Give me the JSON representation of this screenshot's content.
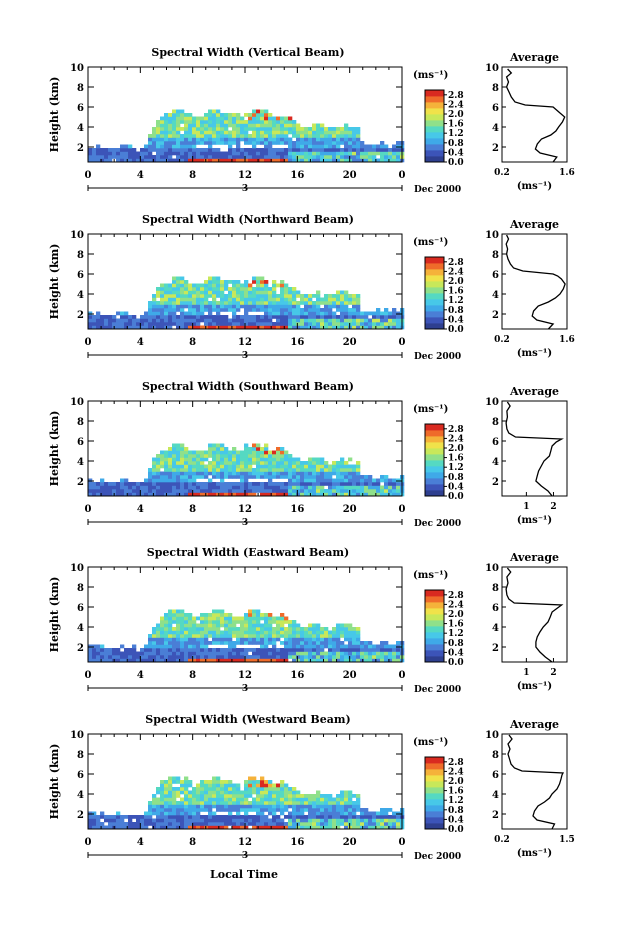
{
  "figure": {
    "xlabel": "Local Time"
  },
  "colorbar": {
    "unit_label": "(ms⁻¹)",
    "ticks": [
      "0.0",
      "0.4",
      "0.8",
      "1.2",
      "1.6",
      "2.0",
      "2.4",
      "2.8"
    ],
    "colors": [
      "#2e3f8f",
      "#3c54b8",
      "#4a7ed6",
      "#3fa9e8",
      "#47c8e8",
      "#55d9c2",
      "#8fe08a",
      "#c8e85a",
      "#f0e24a",
      "#f5b23a",
      "#ef6b2a",
      "#d92a20"
    ]
  },
  "chart_data": [
    {
      "type": "heatmap",
      "title": "Spectral Width (Vertical Beam)",
      "ylabel": "Height (km)",
      "x_ticks": [
        "0",
        "4",
        "8",
        "12",
        "16",
        "20",
        "0"
      ],
      "y_ticks": [
        "2",
        "4",
        "6",
        "8",
        "10"
      ],
      "xlim": [
        0,
        24
      ],
      "ylim": [
        0.5,
        10
      ],
      "date_marker": "3",
      "date_label": "Dec 2000",
      "avg": {
        "title": "Average",
        "xlabel": "(ms⁻¹)",
        "x_ticks": [
          "0.2",
          "1.6"
        ],
        "y_ticks": [
          "2",
          "4",
          "6",
          "8",
          "10"
        ],
        "xlim": [
          0.2,
          1.6
        ],
        "profile": [
          [
            0.5,
            1.3
          ],
          [
            1.0,
            1.38
          ],
          [
            1.4,
            1.02
          ],
          [
            1.8,
            0.92
          ],
          [
            2.3,
            0.96
          ],
          [
            2.8,
            1.05
          ],
          [
            3.2,
            1.25
          ],
          [
            3.6,
            1.36
          ],
          [
            4.0,
            1.42
          ],
          [
            4.5,
            1.5
          ],
          [
            5.0,
            1.55
          ],
          [
            5.4,
            1.45
          ],
          [
            5.8,
            1.35
          ],
          [
            6.0,
            1.3
          ],
          [
            6.2,
            0.7
          ],
          [
            6.5,
            0.48
          ],
          [
            7.0,
            0.4
          ],
          [
            7.5,
            0.35
          ],
          [
            8.0,
            0.3
          ],
          [
            8.5,
            0.34
          ],
          [
            9.0,
            0.3
          ],
          [
            9.4,
            0.4
          ],
          [
            9.8,
            0.32
          ]
        ]
      }
    },
    {
      "type": "heatmap",
      "title": "Spectral Width (Northward Beam)",
      "ylabel": "Height (km)",
      "x_ticks": [
        "0",
        "4",
        "8",
        "12",
        "16",
        "20",
        "0"
      ],
      "y_ticks": [
        "2",
        "4",
        "6",
        "8",
        "10"
      ],
      "xlim": [
        0,
        24
      ],
      "ylim": [
        0.5,
        10
      ],
      "date_marker": "3",
      "date_label": "Dec 2000",
      "avg": {
        "title": "Average",
        "xlabel": "(ms⁻¹)",
        "x_ticks": [
          "0.2",
          "1.6"
        ],
        "y_ticks": [
          "2",
          "4",
          "6",
          "8",
          "10"
        ],
        "xlim": [
          0.2,
          1.6
        ],
        "profile": [
          [
            0.5,
            1.2
          ],
          [
            1.0,
            1.3
          ],
          [
            1.4,
            0.95
          ],
          [
            1.8,
            0.85
          ],
          [
            2.3,
            0.88
          ],
          [
            2.8,
            0.98
          ],
          [
            3.2,
            1.2
          ],
          [
            3.6,
            1.35
          ],
          [
            4.0,
            1.45
          ],
          [
            4.5,
            1.52
          ],
          [
            5.0,
            1.56
          ],
          [
            5.5,
            1.48
          ],
          [
            5.8,
            1.4
          ],
          [
            6.0,
            1.3
          ],
          [
            6.3,
            0.65
          ],
          [
            6.6,
            0.45
          ],
          [
            7.0,
            0.38
          ],
          [
            7.5,
            0.33
          ],
          [
            8.0,
            0.3
          ],
          [
            8.5,
            0.32
          ],
          [
            9.0,
            0.29
          ],
          [
            9.5,
            0.34
          ],
          [
            9.9,
            0.3
          ]
        ]
      }
    },
    {
      "type": "heatmap",
      "title": "Spectral Width (Southward Beam)",
      "ylabel": "Height (km)",
      "x_ticks": [
        "0",
        "4",
        "8",
        "12",
        "16",
        "20",
        "0"
      ],
      "y_ticks": [
        "2",
        "4",
        "6",
        "8",
        "10"
      ],
      "xlim": [
        0,
        24
      ],
      "ylim": [
        0.5,
        10
      ],
      "date_marker": "3",
      "date_label": "Dec 2000",
      "avg": {
        "title": "Average",
        "xlabel": "(ms⁻¹)",
        "x_ticks": [
          "1",
          "2"
        ],
        "y_ticks": [
          "2",
          "4",
          "6",
          "8",
          "10"
        ],
        "xlim": [
          0.1,
          2.5
        ],
        "profile": [
          [
            0.5,
            1.95
          ],
          [
            1.0,
            1.8
          ],
          [
            1.5,
            1.55
          ],
          [
            2.0,
            1.35
          ],
          [
            2.5,
            1.4
          ],
          [
            3.0,
            1.45
          ],
          [
            3.5,
            1.55
          ],
          [
            4.0,
            1.65
          ],
          [
            4.5,
            1.85
          ],
          [
            5.0,
            1.9
          ],
          [
            5.5,
            1.95
          ],
          [
            5.9,
            2.1
          ],
          [
            6.2,
            2.3
          ],
          [
            6.4,
            0.6
          ],
          [
            6.8,
            0.35
          ],
          [
            7.2,
            0.28
          ],
          [
            7.8,
            0.25
          ],
          [
            8.4,
            0.3
          ],
          [
            9.0,
            0.28
          ],
          [
            9.5,
            0.4
          ],
          [
            9.9,
            0.3
          ]
        ]
      }
    },
    {
      "type": "heatmap",
      "title": "Spectral Width (Eastward Beam)",
      "ylabel": "Height (km)",
      "x_ticks": [
        "0",
        "4",
        "8",
        "12",
        "16",
        "20",
        "0"
      ],
      "y_ticks": [
        "2",
        "4",
        "6",
        "8",
        "10"
      ],
      "xlim": [
        0,
        24
      ],
      "ylim": [
        0.5,
        10
      ],
      "date_marker": "3",
      "date_label": "Dec 2000",
      "avg": {
        "title": "Average",
        "xlabel": "(ms⁻¹)",
        "x_ticks": [
          "1",
          "2"
        ],
        "y_ticks": [
          "2",
          "4",
          "6",
          "8",
          "10"
        ],
        "xlim": [
          0.1,
          2.5
        ],
        "profile": [
          [
            0.5,
            1.95
          ],
          [
            1.0,
            1.7
          ],
          [
            1.5,
            1.5
          ],
          [
            2.0,
            1.35
          ],
          [
            2.5,
            1.35
          ],
          [
            3.0,
            1.4
          ],
          [
            3.5,
            1.5
          ],
          [
            4.0,
            1.62
          ],
          [
            4.5,
            1.8
          ],
          [
            5.0,
            1.88
          ],
          [
            5.5,
            1.95
          ],
          [
            5.9,
            2.15
          ],
          [
            6.2,
            2.3
          ],
          [
            6.4,
            0.55
          ],
          [
            6.8,
            0.35
          ],
          [
            7.2,
            0.28
          ],
          [
            7.8,
            0.25
          ],
          [
            8.4,
            0.32
          ],
          [
            9.0,
            0.28
          ],
          [
            9.5,
            0.42
          ],
          [
            9.9,
            0.3
          ]
        ]
      }
    },
    {
      "type": "heatmap",
      "title": "Spectral Width (Westward Beam)",
      "ylabel": "Height (km)",
      "x_ticks": [
        "0",
        "4",
        "8",
        "12",
        "16",
        "20",
        "0"
      ],
      "y_ticks": [
        "2",
        "4",
        "6",
        "8",
        "10"
      ],
      "xlim": [
        0,
        24
      ],
      "ylim": [
        0.5,
        10
      ],
      "date_marker": "3",
      "date_label": "Dec 2000",
      "avg": {
        "title": "Average",
        "xlabel": "(ms⁻¹)",
        "x_ticks": [
          "0.2",
          "1.5"
        ],
        "y_ticks": [
          "2",
          "4",
          "6",
          "8",
          "10"
        ],
        "xlim": [
          0.2,
          1.5
        ],
        "profile": [
          [
            0.5,
            1.2
          ],
          [
            1.0,
            1.25
          ],
          [
            1.4,
            0.9
          ],
          [
            1.8,
            0.82
          ],
          [
            2.3,
            0.85
          ],
          [
            2.8,
            0.92
          ],
          [
            3.2,
            1.05
          ],
          [
            3.6,
            1.15
          ],
          [
            4.0,
            1.2
          ],
          [
            4.5,
            1.3
          ],
          [
            5.0,
            1.35
          ],
          [
            5.5,
            1.38
          ],
          [
            5.9,
            1.4
          ],
          [
            6.1,
            1.42
          ],
          [
            6.3,
            0.6
          ],
          [
            6.6,
            0.45
          ],
          [
            7.0,
            0.38
          ],
          [
            7.5,
            0.35
          ],
          [
            8.0,
            0.32
          ],
          [
            8.5,
            0.36
          ],
          [
            9.0,
            0.32
          ],
          [
            9.5,
            0.4
          ],
          [
            9.9,
            0.34
          ]
        ]
      }
    }
  ]
}
